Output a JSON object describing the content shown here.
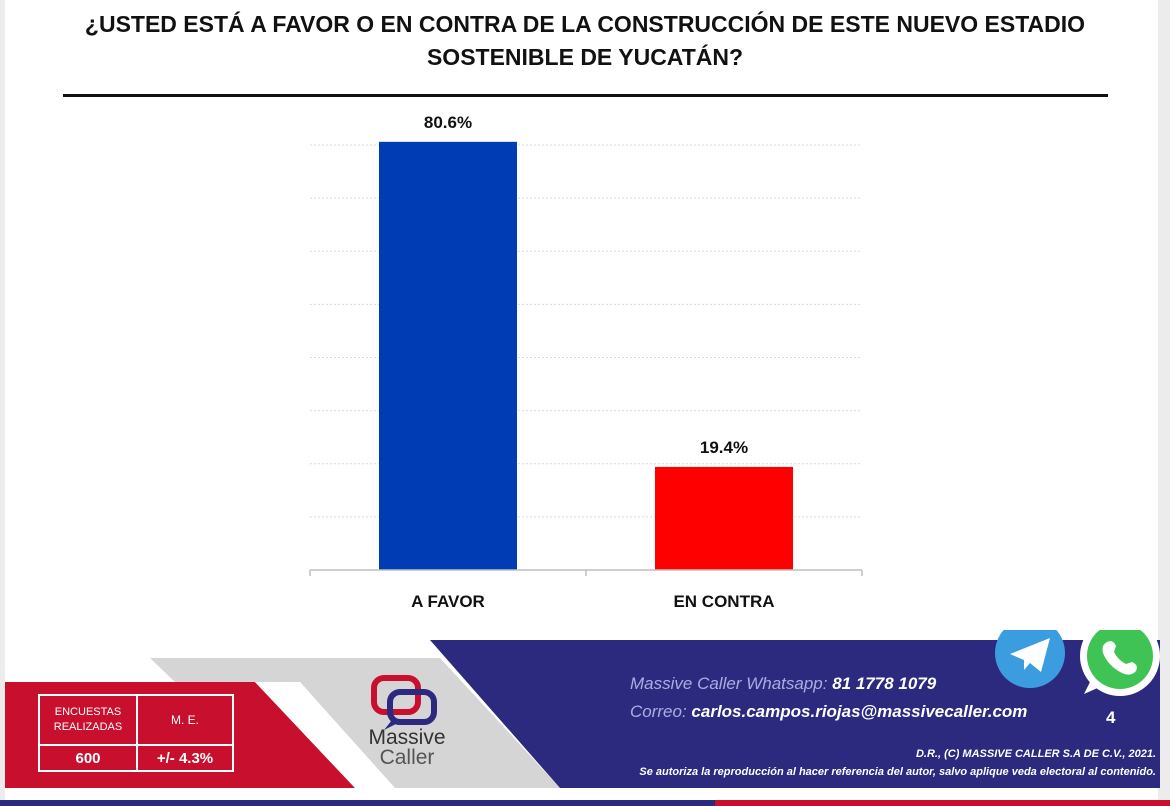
{
  "title": "¿USTED ESTÁ A FAVOR O EN CONTRA DE LA CONSTRUCCIÓN DE ESTE NUEVO ESTADIO SOSTENIBLE DE YUCATÁN?",
  "chart_data": {
    "type": "bar",
    "title": "¿USTED ESTÁ A FAVOR O EN CONTRA DE LA CONSTRUCCIÓN DE ESTE NUEVO ESTADIO SOSTENIBLE DE YUCATÁN?",
    "categories": [
      "A FAVOR",
      "EN CONTRA"
    ],
    "values": [
      80.6,
      19.4
    ],
    "value_labels": [
      "80.6%",
      "19.4%"
    ],
    "colors": [
      "#003cb4",
      "#ff0000"
    ],
    "ylim": [
      0,
      80
    ],
    "grid": true,
    "xlabel": "",
    "ylabel": ""
  },
  "stats": {
    "surveys_label": "ENCUESTAS REALIZADAS",
    "surveys_value": "600",
    "me_label": "M. E.",
    "me_value": "+/- 4.3%"
  },
  "logo": {
    "line1": "Massive",
    "line2": "Caller"
  },
  "contact": {
    "whatsapp_label": "Massive Caller Whatsapp:",
    "whatsapp_value": "81 1778 1079",
    "email_label": "Correo:",
    "email_value": "carlos.campos.riojas@massivecaller.com"
  },
  "page_number": "4",
  "legal": {
    "line1": "D.R., (C) MASSIVE CALLER S.A DE C.V., 2021.",
    "line2": "Se autoriza la reproducción al hacer referencia del autor, salvo aplique veda electoral al contenido."
  },
  "colors": {
    "footer_blue": "#2b2a7e",
    "footer_red": "#c8102e",
    "telegram": "#3b9de0",
    "whatsapp": "#3ec354"
  },
  "icons": [
    "telegram-icon",
    "whatsapp-icon",
    "massive-caller-logo"
  ]
}
